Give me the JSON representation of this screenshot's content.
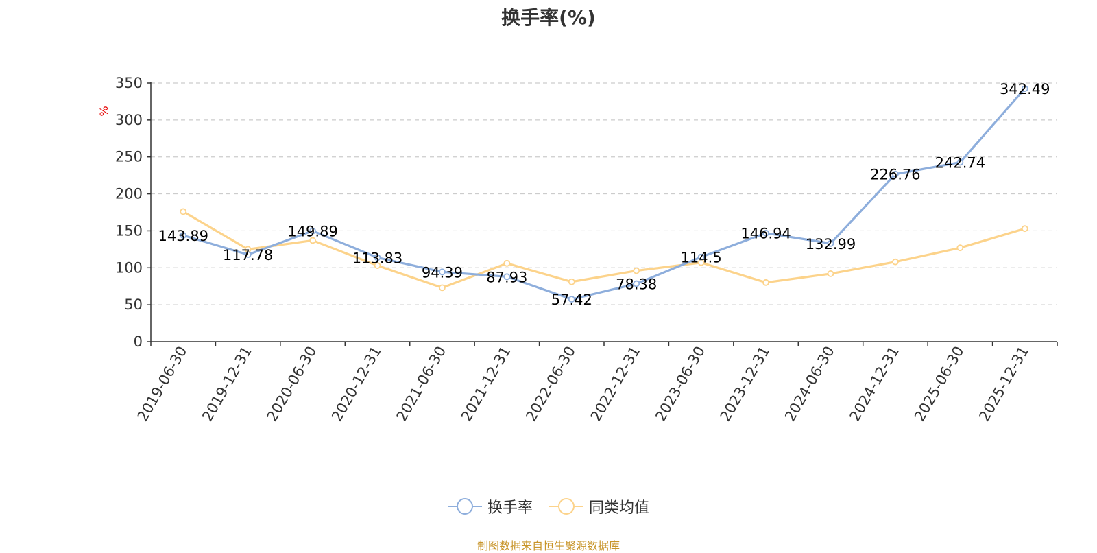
{
  "chart_data": {
    "type": "line",
    "title": "换手率(%)",
    "unit_label": "%",
    "categories": [
      "2019-06-30",
      "2019-12-31",
      "2020-06-30",
      "2020-12-31",
      "2021-06-30",
      "2021-12-31",
      "2022-06-30",
      "2022-12-31",
      "2023-06-30",
      "2023-12-31",
      "2024-06-30",
      "2024-12-31",
      "2025-06-30",
      "2025-12-31"
    ],
    "ylim": [
      0,
      350
    ],
    "yticks": [
      0,
      50,
      100,
      150,
      200,
      250,
      300,
      350
    ],
    "grid": true,
    "legend_position": "bottom",
    "series": [
      {
        "name": "换手率",
        "color": "#8eaedc",
        "values": [
          143.89,
          117.78,
          149.89,
          113.83,
          94.39,
          87.93,
          57.42,
          78.38,
          114.5,
          146.94,
          132.99,
          226.76,
          242.74,
          342.49
        ],
        "labels": [
          "143.89",
          "117.78",
          "149.89",
          "113.83",
          "94.39",
          "87.93",
          "57.42",
          "78.38",
          "114.5",
          "146.94",
          "132.99",
          "226.76",
          "242.74",
          "342.49"
        ]
      },
      {
        "name": "同类均值",
        "color": "#fcd38b",
        "values": [
          176,
          125,
          137,
          103,
          73,
          106,
          81,
          96,
          107,
          80,
          92,
          108,
          127,
          153
        ]
      }
    ]
  },
  "footer": {
    "source": "制图数据来自恒生聚源数据库"
  }
}
